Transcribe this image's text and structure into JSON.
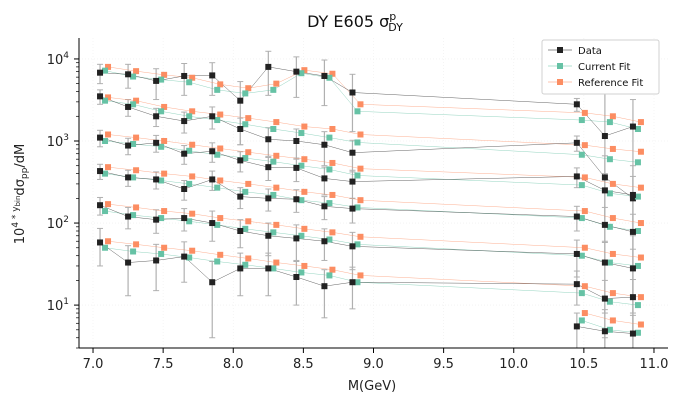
{
  "chart_data": {
    "type": "scatter",
    "title_main": "DY E605 σ",
    "title_sup": "p",
    "title_sub": "DY",
    "xlabel": "M(GeV)",
    "ylabel_main": "10",
    "ylabel_sup": "4 * y",
    "ylabel_sup_sub": "bin",
    "ylabel_tail": "dσ",
    "ylabel_tail_sub": "pp",
    "ylabel_end": "/dM",
    "xlim": [
      6.9,
      11.1
    ],
    "ylim": [
      3,
      18000
    ],
    "yscale": "log",
    "x_ticks": [
      7.0,
      7.5,
      8.0,
      8.5,
      9.0,
      9.5,
      10.0,
      10.5,
      11.0
    ],
    "x_tick_labels": [
      "7.0",
      "7.5",
      "8.0",
      "8.5",
      "9.0",
      "9.5",
      "10.0",
      "10.5",
      "11.0"
    ],
    "y_ticks": [
      10,
      100,
      1000,
      10000
    ],
    "y_tick_base": "10",
    "y_tick_exps": [
      "1",
      "2",
      "3",
      "4"
    ],
    "legend_position": "top-right",
    "legend": [
      {
        "label": "Data",
        "color": "#222222"
      },
      {
        "label": "Current Fit",
        "color": "#66c2a5"
      },
      {
        "label": "Reference Fit",
        "color": "#fc8d62"
      }
    ],
    "colors": {
      "data": "#222222",
      "current": "#66c2a5",
      "reference": "#fc8d62",
      "errorbar": "#b0b0b0"
    },
    "x": [
      7.05,
      7.25,
      7.45,
      7.65,
      7.85,
      8.05,
      8.25,
      8.45,
      8.65,
      8.85,
      10.45,
      10.65,
      10.85
    ],
    "series": [
      {
        "data": [
          6800,
          6500,
          5400,
          6200,
          6300,
          3100,
          8000,
          7000,
          6200,
          3900,
          2800,
          1150,
          1500
        ],
        "data_err": [
          1800,
          2100,
          2200,
          2600,
          2700,
          2200,
          4400,
          3600,
          3500,
          2600,
          500,
          2600,
          1700
        ],
        "current": [
          7200,
          6100,
          5600,
          5200,
          4200,
          3800,
          4200,
          6700,
          5900,
          2300,
          1800,
          1700,
          1400
        ],
        "reference": [
          8000,
          7100,
          6400,
          5900,
          4900,
          4400,
          5000,
          7300,
          6600,
          2800,
          2200,
          2000,
          1700
        ]
      },
      {
        "data": [
          3500,
          2600,
          2000,
          1750,
          2000,
          1400,
          1050,
          1000,
          900,
          720,
          950,
          360,
          200
        ],
        "data_err": [
          700,
          600,
          500,
          500,
          600,
          500,
          400,
          400,
          400,
          300,
          200,
          300,
          300
        ],
        "current": [
          3100,
          2800,
          2300,
          2000,
          1800,
          1600,
          1400,
          1250,
          1100,
          960,
          680,
          600,
          550
        ],
        "reference": [
          3400,
          3100,
          2600,
          2300,
          2100,
          1900,
          1700,
          1500,
          1400,
          1200,
          890,
          800,
          740
        ]
      },
      {
        "data": [
          1100,
          880,
          950,
          700,
          750,
          580,
          480,
          470,
          350,
          320,
          370,
          250,
          220
        ],
        "data_err": [
          250,
          200,
          220,
          180,
          200,
          160,
          150,
          150,
          130,
          120,
          100,
          150,
          150
        ],
        "current": [
          1000,
          920,
          850,
          760,
          680,
          620,
          560,
          500,
          450,
          380,
          290,
          230,
          210
        ],
        "reference": [
          1200,
          1100,
          1000,
          900,
          810,
          730,
          660,
          600,
          540,
          460,
          360,
          300,
          270
        ]
      },
      {
        "data": [
          430,
          360,
          340,
          260,
          340,
          210,
          200,
          195,
          160,
          150,
          120,
          95,
          78
        ],
        "data_err": [
          90,
          80,
          80,
          70,
          90,
          60,
          60,
          60,
          50,
          50,
          40,
          60,
          50
        ],
        "current": [
          400,
          360,
          330,
          300,
          270,
          240,
          220,
          190,
          175,
          155,
          115,
          90,
          80
        ],
        "reference": [
          480,
          440,
          400,
          370,
          330,
          300,
          270,
          240,
          220,
          190,
          140,
          115,
          100
        ]
      },
      {
        "data": [
          165,
          120,
          110,
          115,
          100,
          80,
          70,
          65,
          60,
          52,
          42,
          33,
          28
        ],
        "data_err": [
          40,
          35,
          35,
          35,
          40,
          30,
          30,
          30,
          25,
          25,
          20,
          25,
          20
        ],
        "current": [
          140,
          125,
          115,
          105,
          95,
          85,
          77,
          70,
          63,
          55,
          40,
          33,
          30
        ],
        "reference": [
          170,
          155,
          140,
          130,
          115,
          105,
          95,
          85,
          77,
          68,
          50,
          42,
          38
        ]
      },
      {
        "data": [
          58,
          33,
          35,
          39,
          19,
          28,
          28,
          22,
          17,
          19,
          18,
          12,
          12.5
        ],
        "data_err": [
          28,
          20,
          20,
          20,
          15,
          15,
          15,
          12,
          10,
          10,
          8,
          8,
          8
        ],
        "current": [
          50,
          45,
          42,
          38,
          34,
          31,
          28,
          25,
          23,
          19,
          14,
          11,
          10
        ],
        "reference": [
          60,
          55,
          50,
          46,
          41,
          37,
          33,
          30,
          27,
          23,
          17,
          14,
          12.5
        ]
      },
      {
        "data": [
          null,
          null,
          null,
          null,
          null,
          null,
          null,
          null,
          null,
          null,
          5.5,
          4.8,
          4.5
        ],
        "data_err": [
          null,
          null,
          null,
          null,
          null,
          null,
          null,
          null,
          null,
          null,
          2.5,
          4,
          3
        ],
        "current": [
          null,
          null,
          null,
          null,
          null,
          null,
          null,
          null,
          null,
          null,
          6.5,
          5,
          4.6
        ],
        "reference": [
          null,
          null,
          null,
          null,
          null,
          null,
          null,
          null,
          null,
          null,
          8,
          6.5,
          5.8
        ]
      }
    ]
  }
}
